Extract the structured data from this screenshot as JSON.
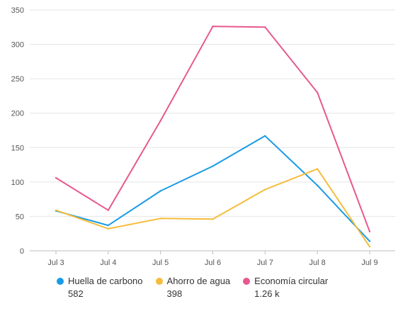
{
  "chart_data": {
    "type": "line",
    "title": "",
    "xlabel": "",
    "ylabel": "",
    "categories": [
      "Jul 3",
      "Jul 4",
      "Jul 5",
      "Jul 6",
      "Jul 7",
      "Jul 8",
      "Jul 9"
    ],
    "ylim": [
      0,
      350
    ],
    "yticks": [
      0,
      50,
      100,
      150,
      200,
      250,
      300,
      350
    ],
    "grid": true,
    "legend_position": "bottom",
    "series": [
      {
        "name": "Huella de carbono",
        "color": "#1a9be6",
        "values": [
          58,
          37,
          87,
          123,
          167,
          95,
          14
        ],
        "total_label": "582"
      },
      {
        "name": "Ahorro de agua",
        "color": "#f5bd3c",
        "values": [
          59,
          32,
          47,
          46,
          89,
          119,
          6
        ],
        "total_label": "398"
      },
      {
        "name": "Economía circular",
        "color": "#e8588f",
        "values": [
          106,
          59,
          189,
          326,
          325,
          230,
          28
        ],
        "total_label": "1.26 k"
      }
    ]
  }
}
